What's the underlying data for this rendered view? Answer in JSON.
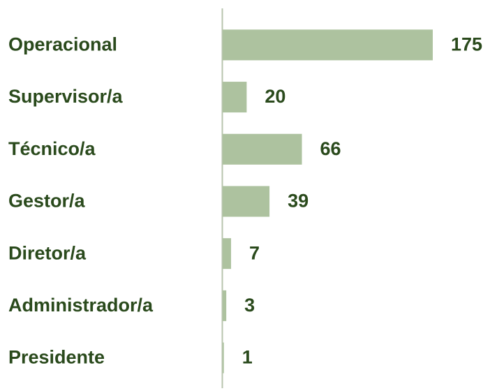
{
  "chart_data": {
    "type": "barh",
    "categories": [
      "Operacional",
      "Supervisor/a",
      "Técnico/a",
      "Gestor/a",
      "Diretor/a",
      "Administrador/a",
      "Presidente"
    ],
    "values": [
      175,
      20,
      66,
      39,
      7,
      3,
      1
    ],
    "color": "#adc29f"
  }
}
